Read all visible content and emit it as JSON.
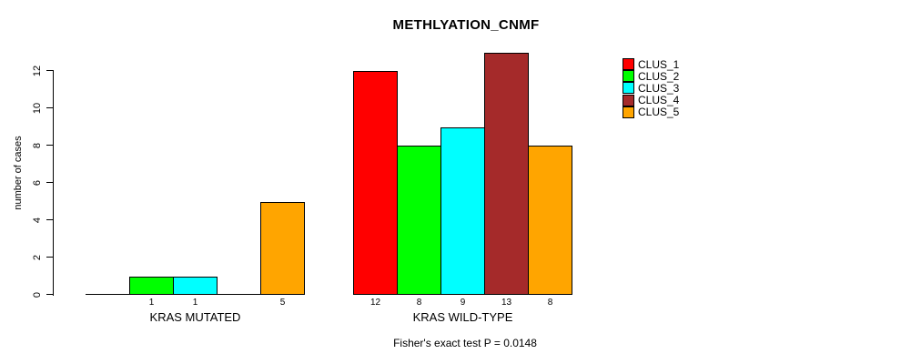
{
  "title": "METHLYATION_CNMF",
  "chart_data": {
    "type": "bar",
    "title": "METHLYATION_CNMF",
    "ylabel": "number of cases",
    "xlabel": "",
    "ylim": [
      0,
      12
    ],
    "yticks": [
      0,
      2,
      4,
      6,
      8,
      10,
      12
    ],
    "grid": false,
    "legend_position": "right",
    "categories": [
      "KRAS MUTATED",
      "KRAS WILD-TYPE"
    ],
    "series": [
      {
        "name": "CLUS_1",
        "color": "#ff0000",
        "values": [
          0,
          12
        ]
      },
      {
        "name": "CLUS_2",
        "color": "#00ff00",
        "values": [
          1,
          8
        ]
      },
      {
        "name": "CLUS_3",
        "color": "#00ffff",
        "values": [
          1,
          9
        ]
      },
      {
        "name": "CLUS_4",
        "color": "#a52a2a",
        "values": [
          0,
          13
        ]
      },
      {
        "name": "CLUS_5",
        "color": "#ffa500",
        "values": [
          5,
          8
        ]
      }
    ],
    "value_label_rule": "value shown below each bar only when value > 0",
    "annotation": "Fisher's exact test P = 0.0148"
  }
}
